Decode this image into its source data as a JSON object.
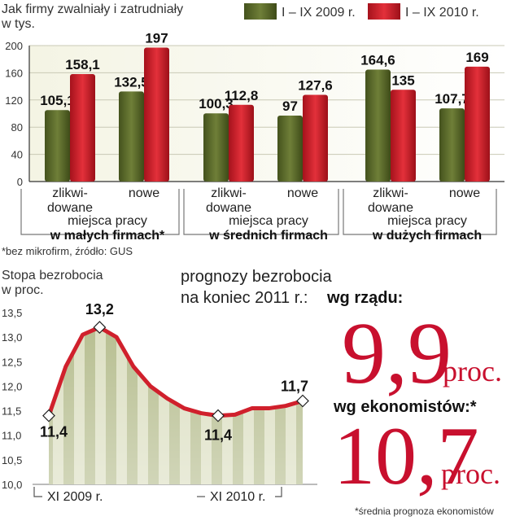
{
  "chart_data": [
    {
      "type": "bar",
      "title": "Jak firmy zwalniały i zatrudniały",
      "ylabel": "w tys.",
      "ylim": [
        0,
        200
      ],
      "yticks": [
        0,
        40,
        80,
        120,
        160,
        200
      ],
      "grid": true,
      "legend_position": "top-right",
      "bar_groups": [
        "zlikwi-|dowane",
        "nowe",
        "zlikwi-|dowane",
        "nowe",
        "zlikwi-|dowane",
        "nowe"
      ],
      "sections": [
        {
          "line1": "miejsca pracy",
          "line2_bold": "w małych firmach*"
        },
        {
          "line1": "miejsca pracy",
          "line2_bold": "w średnich firmach"
        },
        {
          "line1": "miejsca pracy",
          "line2_bold": "w dużych firmach"
        }
      ],
      "series": [
        {
          "name": "I – IX 2009 r.",
          "values": [
            105.1,
            132.5,
            100.3,
            97,
            164.6,
            107.7
          ],
          "labels": [
            "105,1",
            "132,5",
            "100,3",
            "97",
            "164,6",
            "107,7"
          ]
        },
        {
          "name": "I – IX 2010 r.",
          "values": [
            158.1,
            197,
            112.8,
            127.6,
            135,
            169
          ],
          "labels": [
            "158,1",
            "197",
            "112,8",
            "127,6",
            "135",
            "169"
          ]
        }
      ],
      "source_note": "*bez mikrofirm, źródło: GUS",
      "colors": {
        "series_2009": "#5a6a2c",
        "series_2010": "#d0202c"
      }
    },
    {
      "type": "line",
      "title": "Stopa bezrobocia",
      "ylabel": "w proc.",
      "ylim": [
        10.0,
        13.5
      ],
      "yticks": [
        "10,0",
        "10,5",
        "11,0",
        "11,5",
        "12,0",
        "12,5",
        "13,0",
        "13,5"
      ],
      "x": [
        "XI 2009 r.",
        "",
        "",
        "",
        "",
        "",
        "",
        "",
        "",
        "",
        "",
        "",
        "XI 2010 r.",
        "",
        "",
        ""
      ],
      "x_tick_labels": [
        "XI 2009 r.",
        "XI 2010 r."
      ],
      "values": [
        11.4,
        12.4,
        13.05,
        13.2,
        13.0,
        12.4,
        12.0,
        11.75,
        11.55,
        11.45,
        11.4,
        11.42,
        11.55,
        11.55,
        11.6,
        11.7
      ],
      "annotations": [
        {
          "index": 0,
          "label": "11,4"
        },
        {
          "index": 3,
          "label": "13,2"
        },
        {
          "index": 10,
          "label": "11,4"
        },
        {
          "index": 15,
          "label": "11,7"
        }
      ],
      "colors": {
        "line": "#d0202c"
      }
    }
  ],
  "forecast": {
    "heading_line1": "prognozy bezrobocia",
    "heading_line2": "na koniec 2011 r.:",
    "government_label": "wg rządu:",
    "government_value": "9,9",
    "government_unit": "proc.",
    "economists_label": "wg ekonomistów:*",
    "economists_value": "10,7",
    "economists_unit": "proc.",
    "footnote": "*średnia prognoza ekonomistów"
  }
}
